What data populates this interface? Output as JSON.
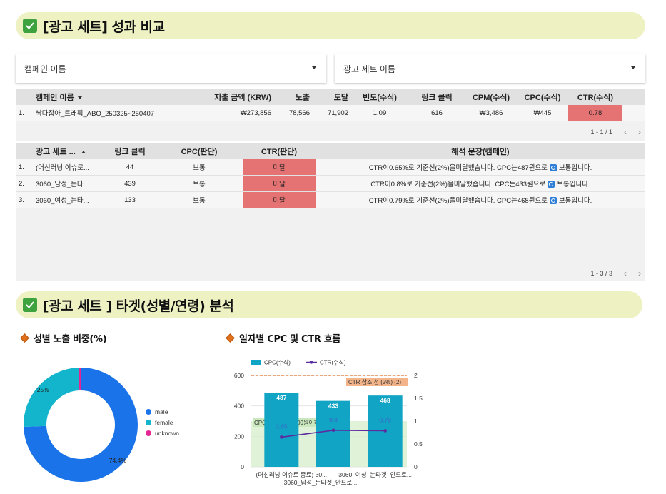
{
  "section1": {
    "title": "[광고 세트] 성과 비교"
  },
  "filters": {
    "campaign": "캠페인 이름",
    "adset": "광고 세트 이름"
  },
  "campaign_table": {
    "headers": [
      "캠페인 이름",
      "지출 금액 (KRW)",
      "노출",
      "도달",
      "빈도(수식)",
      "링크 클릭",
      "CPM(수식)",
      "CPC(수식)",
      "CTR(수식)"
    ],
    "rows": [
      {
        "idx": "1.",
        "name": "싹다잡아_트래픽_ABO_250325~250407",
        "spend": "₩273,856",
        "impressions": "78,566",
        "reach": "71,902",
        "freq": "1.09",
        "clicks": "616",
        "cpm": "₩3,486",
        "cpc": "₩445",
        "ctr": "0.78"
      }
    ],
    "pager": "1 - 1 / 1"
  },
  "adset_table": {
    "headers": [
      "광고 세트 ...",
      "링크 클릭",
      "CPC(판단)",
      "CTR(판단)",
      "해석 문장(캠페인)"
    ],
    "rows": [
      {
        "idx": "1.",
        "name": "(머신러닝 이슈로...",
        "clicks": "44",
        "cpc_judge": "보통",
        "ctr_judge": "미달",
        "text_a": "CTR이0.65%로 기준선(2%)을미달했습니다. CPC는487원으로",
        "text_b": "보통입니다."
      },
      {
        "idx": "2.",
        "name": "3060_남성_논타...",
        "clicks": "439",
        "cpc_judge": "보통",
        "ctr_judge": "미달",
        "text_a": "CTR이0.8%로 기준선(2%)을미달했습니다. CPC는433원으로",
        "text_b": "보통입니다."
      },
      {
        "idx": "3.",
        "name": "3060_여성_논타...",
        "clicks": "133",
        "cpc_judge": "보통",
        "ctr_judge": "미달",
        "text_a": "CTR이0.79%로 기준선(2%)을미달했습니다. CPC는468원으로",
        "text_b": "보통입니다."
      }
    ],
    "pager": "1 - 3 / 3"
  },
  "section2": {
    "title": "[광고 세트 ] 타겟(성별/연령) 분석"
  },
  "gender_chart": {
    "title": "성별 노출 비중(%)",
    "chart_data": {
      "type": "pie",
      "slices": [
        {
          "label": "male",
          "value": 74.4,
          "color": "#1a73e8",
          "display": "74.4%"
        },
        {
          "label": "female",
          "value": 25,
          "color": "#12b5cb",
          "display": "25%"
        },
        {
          "label": "unknown",
          "value": 0.6,
          "color": "#e52592",
          "display": ""
        }
      ]
    }
  },
  "daily_chart": {
    "title": "일자별 CPC 및 CTR 흐름",
    "legend": {
      "bar": "CPC(수식)",
      "line": "CTR(수식)"
    },
    "chart_data": {
      "type": "bar",
      "categories": [
        "(머신러닝 이슈로 종료) 30...",
        "3060_남성_논타겟_안드로...",
        "3060_여성_논타겟_안드로..."
      ],
      "series": [
        {
          "name": "CPC(수식)",
          "type": "bar",
          "axis": "left",
          "values": [
            487,
            433,
            468
          ],
          "color": "#12a4c4"
        },
        {
          "name": "CTR(수식)",
          "type": "line",
          "axis": "right",
          "values": [
            0.65,
            0.8,
            0.79
          ],
          "color": "#5b2ca0"
        }
      ],
      "yleft": {
        "ticks": [
          "0",
          "200",
          "400",
          "600"
        ],
        "lim": [
          0,
          600
        ]
      },
      "yright": {
        "ticks": [
          "0",
          "0.5",
          "1",
          "1.5",
          "2"
        ],
        "lim": [
          0,
          2
        ]
      },
      "reference_line": {
        "label": "CTR 참조 선 (2%) (2)",
        "value": 2,
        "axis": "right",
        "color": "#e0702c"
      },
      "reference_band": {
        "label": "CPC 참조 밴드 (300원이하)",
        "from": 0,
        "to": 300,
        "axis": "left",
        "color": "#d5eecb"
      }
    }
  }
}
